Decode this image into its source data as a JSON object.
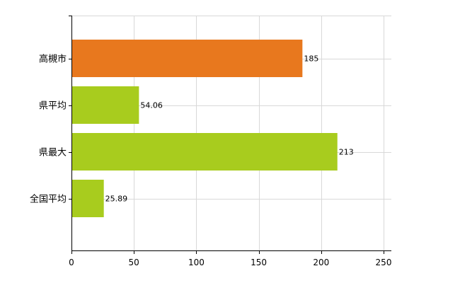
{
  "chart_data": {
    "type": "bar",
    "orientation": "horizontal",
    "categories": [
      "高槻市",
      "県平均",
      "県最大",
      "全国平均"
    ],
    "values": [
      185,
      54.06,
      213,
      25.89
    ],
    "data_labels": [
      "185",
      "54.06",
      "213",
      "25.89"
    ],
    "bar_colors": [
      "#E8781E",
      "#A8CC1E",
      "#A8CC1E",
      "#A8CC1E"
    ],
    "xlim": [
      0,
      250
    ],
    "xticks": [
      0,
      50,
      100,
      150,
      200,
      250
    ],
    "xtick_labels": [
      "0",
      "50",
      "100",
      "150",
      "200",
      "250"
    ],
    "title": "",
    "xlabel": "",
    "ylabel": "",
    "grid": true,
    "legend": "none"
  },
  "colors": {
    "highlight_bar": "#E8781E",
    "comparison_bar": "#A8CC1E",
    "grid": "#D8D8D8",
    "axis": "#000000"
  }
}
